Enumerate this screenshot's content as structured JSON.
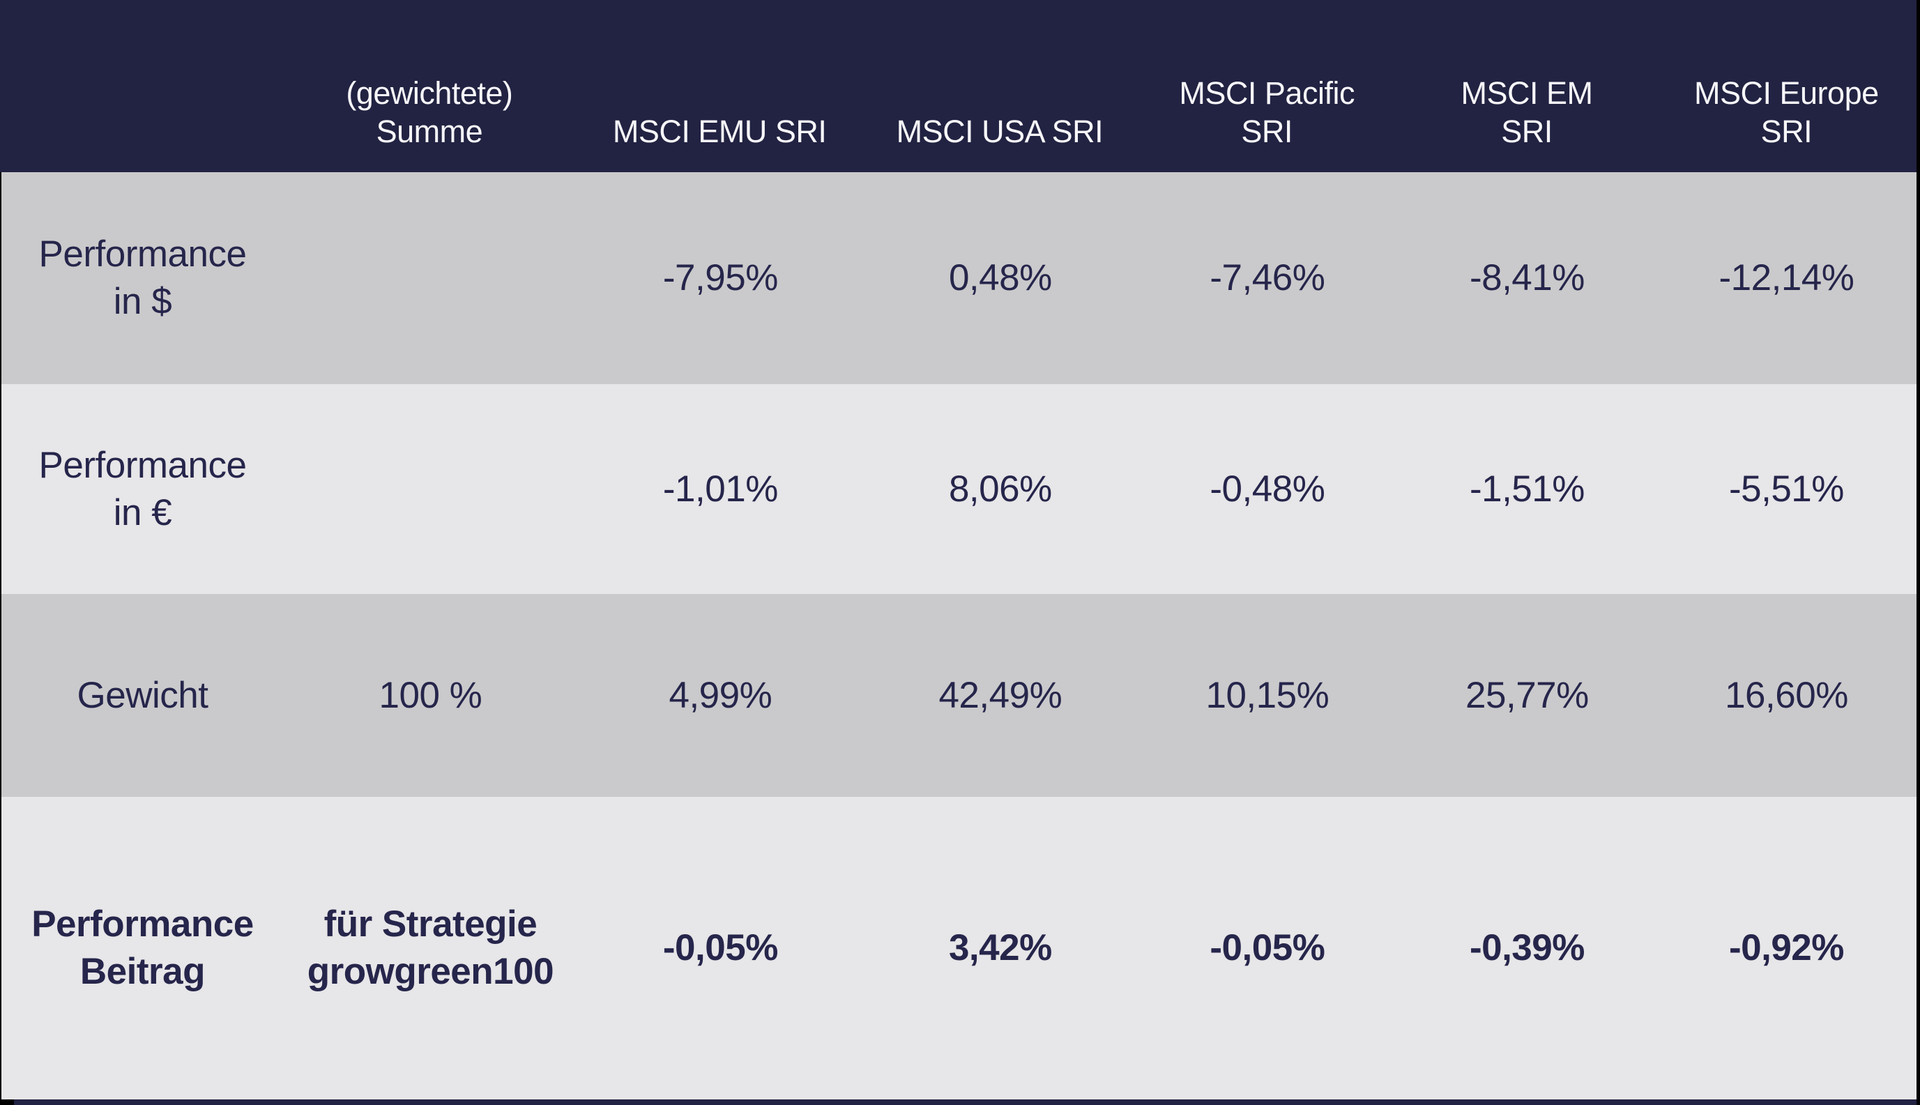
{
  "colors": {
    "header_bg": "#222242",
    "row_dark_bg": "#cacacc",
    "row_light_bg": "#e7e6e8",
    "text_dark": "#26254b",
    "text_light": "#f7f7fa"
  },
  "header": {
    "cols": [
      {
        "label": ""
      },
      {
        "label": "(gewichtete)\nSumme"
      },
      {
        "label": "MSCI EMU SRI"
      },
      {
        "label": "MSCI USA SRI"
      },
      {
        "label": "MSCI Pacific\nSRI"
      },
      {
        "label": "MSCI EM\nSRI"
      },
      {
        "label": "MSCI Europe\nSRI"
      }
    ]
  },
  "rows": [
    {
      "label": "Performance\nin $",
      "cells": [
        "",
        "-7,95%",
        "0,48%",
        "-7,46%",
        "-8,41%",
        "-12,14%"
      ]
    },
    {
      "label": "Performance\nin €",
      "cells": [
        "",
        "-1,01%",
        "8,06%",
        "-0,48%",
        "-1,51%",
        "-5,51%"
      ]
    },
    {
      "label": "Gewicht",
      "cells": [
        "100 %",
        "4,99%",
        "42,49%",
        "10,15%",
        "25,77%",
        "16,60%"
      ]
    },
    {
      "label": "Performance\nBeitrag",
      "cells": [
        "für Strategie\ngrowgreen100",
        "-0,05%",
        "3,42%",
        "-0,05%",
        "-0,39%",
        "-0,92%"
      ]
    }
  ],
  "chart_data": {
    "type": "table",
    "title": "",
    "columns": [
      "",
      "(gewichtete) Summe",
      "MSCI EMU SRI",
      "MSCI USA SRI",
      "MSCI Pacific SRI",
      "MSCI EM SRI",
      "MSCI Europe SRI"
    ],
    "rows": [
      {
        "label": "Performance in $",
        "summe": "",
        "values_pct": [
          -7.95,
          0.48,
          -7.46,
          -8.41,
          -12.14
        ]
      },
      {
        "label": "Performance in €",
        "summe": "",
        "values_pct": [
          -1.01,
          8.06,
          -0.48,
          -1.51,
          -5.51
        ]
      },
      {
        "label": "Gewicht",
        "summe": "100 %",
        "values_pct": [
          4.99,
          42.49,
          10.15,
          25.77,
          16.6
        ]
      },
      {
        "label": "Performance Beitrag",
        "summe": "für Strategie growgreen100",
        "values_pct": [
          -0.05,
          3.42,
          -0.05,
          -0.39,
          -0.92
        ]
      }
    ]
  }
}
